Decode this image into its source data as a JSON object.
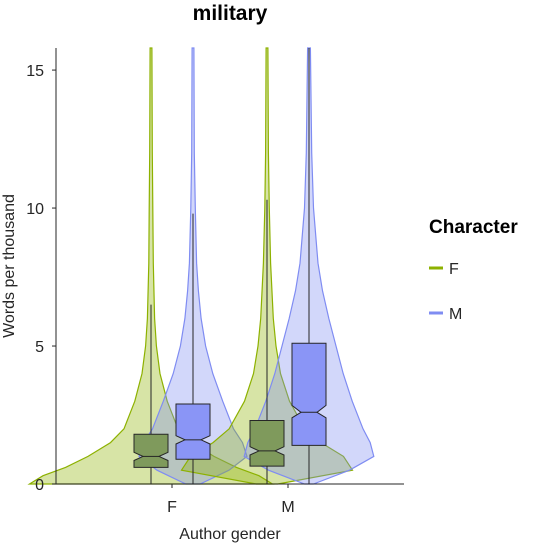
{
  "chart_data": {
    "type": "violin",
    "title": "military",
    "xlabel": "Author gender",
    "ylabel": "Words per thousand",
    "ylim": [
      0,
      15.8
    ],
    "yticks": [
      "0",
      "5",
      "10",
      "15"
    ],
    "categories": [
      "F",
      "M"
    ],
    "legend": {
      "title": "Character",
      "placement": "right",
      "entries": [
        "F",
        "M"
      ]
    },
    "colors": {
      "F": "#8db100",
      "M": "#7f8cf2",
      "F_box": "#7f9a5c",
      "M_box": "#8a95f6"
    },
    "groups": [
      {
        "author": "F",
        "character": "F",
        "box": {
          "q1": 0.6,
          "median": 1.0,
          "q3": 1.8,
          "notch_low": 0.85,
          "notch_high": 1.15,
          "whisker_low": 0.0,
          "whisker_high": 6.5
        },
        "violin_max": 15.8,
        "density": [
          [
            0,
            1.35
          ],
          [
            0.3,
            1.2
          ],
          [
            0.6,
            0.95
          ],
          [
            1.0,
            0.7
          ],
          [
            1.5,
            0.45
          ],
          [
            2.0,
            0.3
          ],
          [
            3.0,
            0.18
          ],
          [
            4.0,
            0.1
          ],
          [
            5.0,
            0.06
          ],
          [
            6.0,
            0.04
          ],
          [
            8.0,
            0.025
          ],
          [
            10.0,
            0.02
          ],
          [
            12.0,
            0.015
          ],
          [
            15.8,
            0.01
          ]
        ]
      },
      {
        "author": "F",
        "character": "M",
        "box": {
          "q1": 0.9,
          "median": 1.6,
          "q3": 2.9,
          "notch_low": 1.45,
          "notch_high": 1.75,
          "whisker_low": 0.0,
          "whisker_high": 9.8
        },
        "violin_max": 15.8,
        "density": [
          [
            0,
            0.08
          ],
          [
            0.5,
            0.4
          ],
          [
            1.0,
            0.6
          ],
          [
            1.5,
            0.55
          ],
          [
            2.0,
            0.45
          ],
          [
            3.0,
            0.33
          ],
          [
            4.0,
            0.22
          ],
          [
            5.0,
            0.14
          ],
          [
            6.0,
            0.09
          ],
          [
            7.0,
            0.06
          ],
          [
            8.0,
            0.04
          ],
          [
            10.0,
            0.025
          ],
          [
            12.0,
            0.015
          ],
          [
            15.8,
            0.01
          ]
        ]
      },
      {
        "author": "M",
        "character": "F",
        "box": {
          "q1": 0.65,
          "median": 1.2,
          "q3": 2.3,
          "notch_low": 1.05,
          "notch_high": 1.35,
          "whisker_low": 0.0,
          "whisker_high": 10.3
        },
        "violin_max": 15.8,
        "density": [
          [
            0,
            0.12
          ],
          [
            0.5,
            0.95
          ],
          [
            1.0,
            0.85
          ],
          [
            1.5,
            0.6
          ],
          [
            2.0,
            0.42
          ],
          [
            3.0,
            0.25
          ],
          [
            4.0,
            0.15
          ],
          [
            5.0,
            0.1
          ],
          [
            6.0,
            0.07
          ],
          [
            8.0,
            0.04
          ],
          [
            10.0,
            0.025
          ],
          [
            12.0,
            0.015
          ],
          [
            15.8,
            0.01
          ]
        ]
      },
      {
        "author": "M",
        "character": "M",
        "box": {
          "q1": 1.4,
          "median": 2.6,
          "q3": 5.1,
          "notch_low": 2.4,
          "notch_high": 2.85,
          "whisker_low": 0.0,
          "whisker_high": 15.8
        },
        "violin_max": 15.8,
        "density": [
          [
            0,
            0.05
          ],
          [
            0.5,
            0.45
          ],
          [
            1.0,
            0.72
          ],
          [
            1.5,
            0.68
          ],
          [
            2.0,
            0.6
          ],
          [
            3.0,
            0.48
          ],
          [
            4.0,
            0.38
          ],
          [
            5.0,
            0.3
          ],
          [
            6.0,
            0.22
          ],
          [
            7.0,
            0.15
          ],
          [
            8.0,
            0.1
          ],
          [
            10.0,
            0.05
          ],
          [
            12.0,
            0.03
          ],
          [
            15.8,
            0.015
          ]
        ]
      }
    ]
  }
}
